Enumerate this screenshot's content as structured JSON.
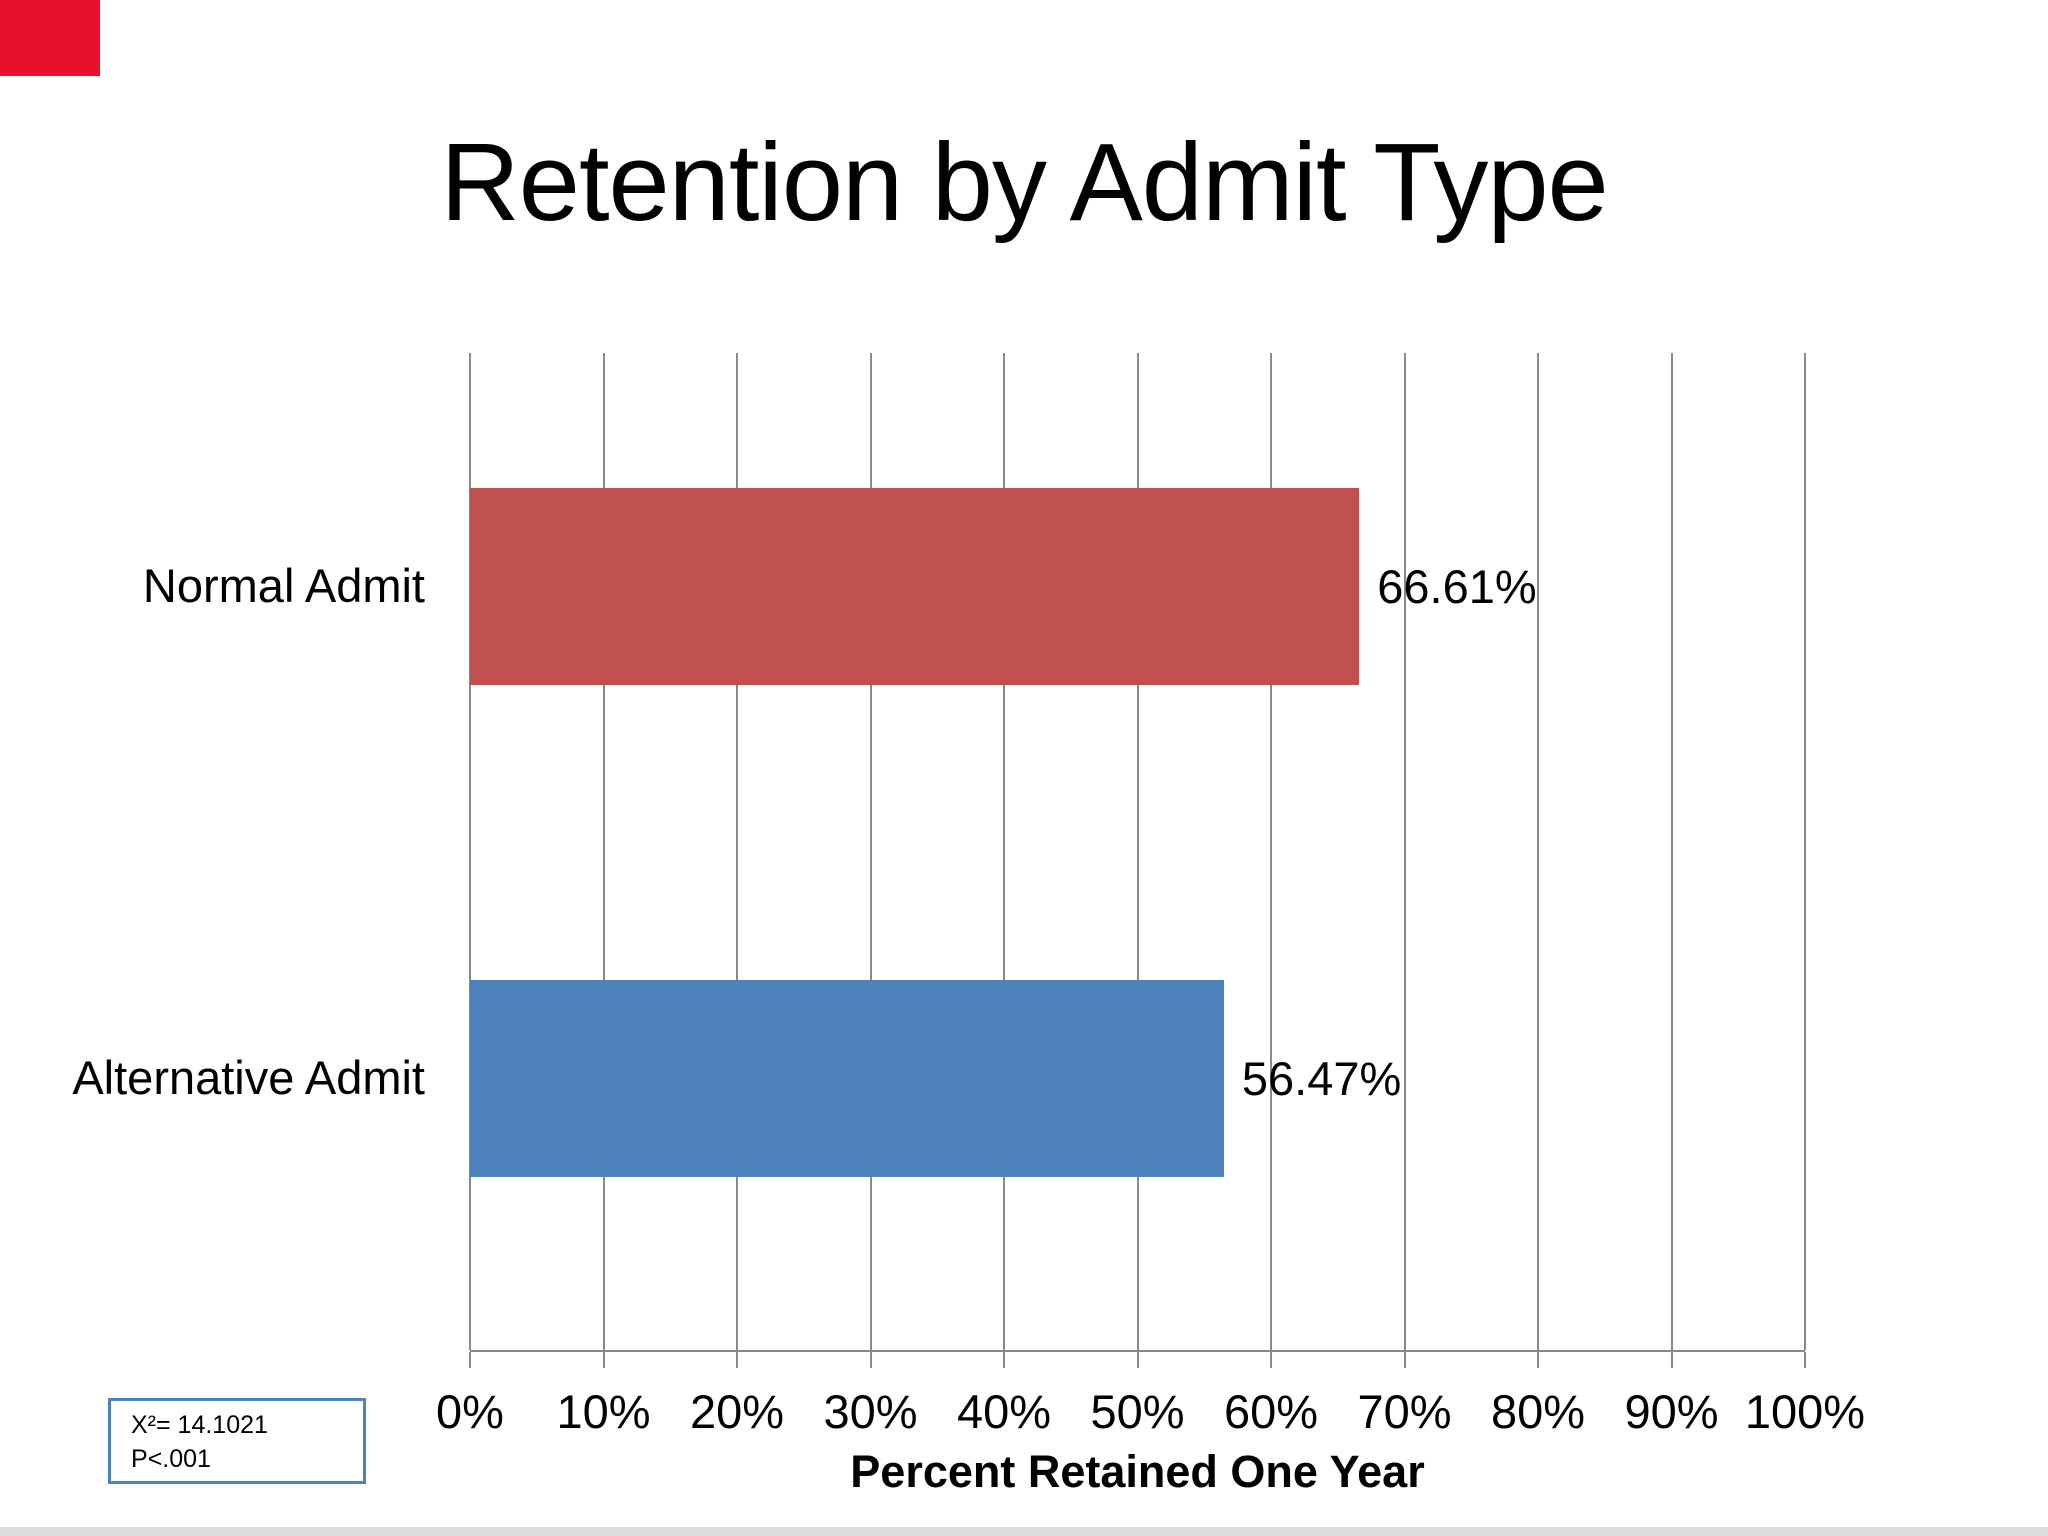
{
  "title": "Retention by Admit Type",
  "chart_data": {
    "type": "bar",
    "orientation": "horizontal",
    "title": "Retention by Admit Type",
    "categories": [
      "Normal Admit",
      "Alternative Admit"
    ],
    "values": [
      66.61,
      56.47
    ],
    "value_labels": [
      "66.61%",
      "56.47%"
    ],
    "series_colors": [
      "#C0504D",
      "#4F81BD"
    ],
    "xlabel": "Percent Retained One Year",
    "xlim": [
      0,
      100
    ],
    "x_ticks": [
      "0%",
      "10%",
      "20%",
      "30%",
      "40%",
      "50%",
      "60%",
      "70%",
      "80%",
      "90%",
      "100%"
    ],
    "grid": "vertical-gridlines",
    "legend": false
  },
  "annotation": {
    "line1": "X²= 14.1021",
    "line2": "P<.001",
    "border_color": "#4F81BD"
  },
  "decoration": {
    "corner_accent_color": "#E8112D"
  },
  "colors": {
    "bar_normal_admit": "#C0504D",
    "bar_alternative_admit": "#4F81BD",
    "gridline": "#898989",
    "text": "#000000",
    "background": "#FFFFFF"
  }
}
